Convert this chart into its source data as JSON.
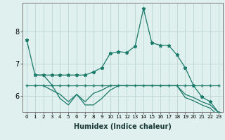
{
  "background_color": "#dff0ee",
  "grid_color": "#c0d8d8",
  "line_color": "#1a7a6a",
  "xlabel": "Humidex (Indice chaleur)",
  "x_ticks": [
    0,
    1,
    2,
    3,
    4,
    5,
    6,
    7,
    8,
    9,
    10,
    11,
    12,
    13,
    14,
    15,
    16,
    17,
    18,
    19,
    20,
    21,
    22,
    23
  ],
  "ylim": [
    5.5,
    8.9
  ],
  "yticks": [
    6,
    7,
    8
  ],
  "line1_x": [
    0,
    1,
    2,
    3,
    4,
    5,
    6,
    7,
    8,
    9,
    10,
    11,
    12,
    13,
    14,
    15,
    16,
    17,
    18,
    19,
    20,
    21,
    22,
    23
  ],
  "line1_y": [
    7.75,
    6.65,
    6.65,
    6.65,
    6.65,
    6.65,
    6.65,
    6.65,
    6.75,
    6.88,
    7.32,
    7.38,
    7.35,
    7.55,
    8.72,
    7.65,
    7.58,
    7.58,
    7.28,
    6.88,
    6.32,
    5.97,
    5.82,
    5.48
  ],
  "line2_x": [
    0,
    1,
    2,
    3,
    4,
    5,
    6,
    7,
    8,
    9,
    10,
    11,
    12,
    13,
    14,
    15,
    16,
    17,
    18,
    19,
    20,
    21,
    22,
    23
  ],
  "line2_y": [
    6.32,
    6.32,
    6.32,
    6.32,
    6.32,
    6.32,
    6.32,
    6.32,
    6.32,
    6.32,
    6.32,
    6.32,
    6.32,
    6.32,
    6.32,
    6.32,
    6.32,
    6.32,
    6.32,
    6.32,
    6.32,
    6.32,
    6.32,
    6.32
  ],
  "line3_x": [
    1,
    2,
    3,
    4,
    5,
    6,
    7,
    8,
    9,
    10,
    11,
    12,
    13,
    14,
    15,
    16,
    17,
    18,
    19,
    20,
    21,
    22,
    23
  ],
  "line3_y": [
    6.32,
    6.32,
    6.18,
    6.05,
    5.82,
    6.05,
    5.82,
    6.08,
    6.18,
    6.32,
    6.32,
    6.32,
    6.32,
    6.32,
    6.32,
    6.32,
    6.32,
    6.32,
    6.05,
    5.95,
    5.82,
    5.72,
    5.48
  ],
  "line4_x": [
    1,
    2,
    3,
    4,
    5,
    6,
    7,
    8,
    9,
    10,
    11,
    12,
    13,
    14,
    15,
    16,
    17,
    18,
    19,
    20,
    21,
    22,
    23
  ],
  "line4_y": [
    6.65,
    6.65,
    6.35,
    5.92,
    5.72,
    6.05,
    5.72,
    5.72,
    5.92,
    6.18,
    6.32,
    6.32,
    6.32,
    6.32,
    6.32,
    6.32,
    6.32,
    6.32,
    5.95,
    5.85,
    5.72,
    5.62,
    5.38
  ]
}
